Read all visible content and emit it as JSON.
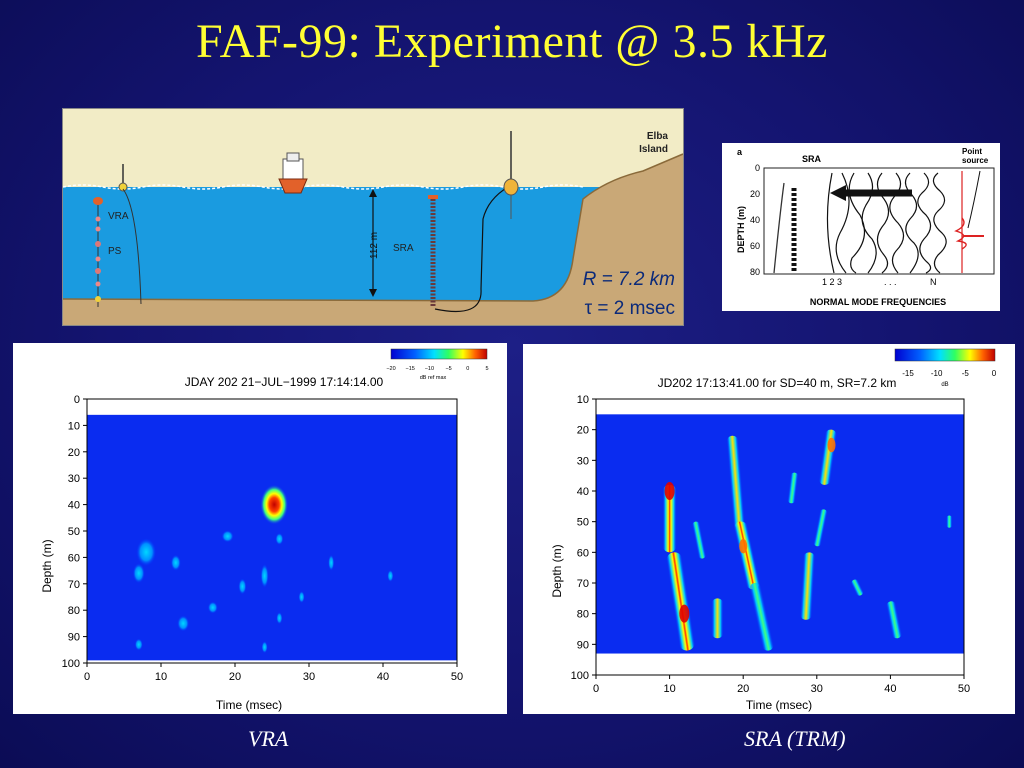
{
  "slide": {
    "title": "FAF-99: Experiment @ 3.5 kHz",
    "caption_left": "VRA",
    "caption_right": "SRA (TRM)"
  },
  "scene": {
    "island_label_1": "Elba",
    "island_label_2": "Island",
    "label_vra": "VRA",
    "label_ps": "PS",
    "label_sra": "SRA",
    "depth_label": "112 m",
    "range_label": "R = 7.2 km",
    "tau_label": "τ = 2 msec",
    "colors": {
      "sky": "#f2ecc6",
      "water": "#1a9be0",
      "seabed": "#c9a877"
    }
  },
  "modes_figure": {
    "panel_letter": "a",
    "label_sra": "SRA",
    "label_point": "Point",
    "label_source": "source",
    "ylabel": "DEPTH (m)",
    "yticks": [
      "0",
      "20",
      "40",
      "60",
      "80"
    ],
    "mode_labels": "1 2 3",
    "mode_dots": ". . .",
    "mode_n": "N",
    "xlabel": "NORMAL MODE FREQUENCIES"
  },
  "chart_data": [
    {
      "type": "heatmap",
      "title": "JDAY 202  21−JUL−1999 17:14:14.00",
      "xlabel": "Time (msec)",
      "ylabel": "Depth (m)",
      "xlim": [
        0,
        50
      ],
      "ylim": [
        0,
        100
      ],
      "xticks": [
        "0",
        "10",
        "20",
        "30",
        "40",
        "50"
      ],
      "yticks": [
        "0",
        "10",
        "20",
        "30",
        "40",
        "50",
        "60",
        "70",
        "80",
        "90",
        "100"
      ],
      "colorbar": {
        "ticks": [
          "−20",
          "−15",
          "−10",
          "−5",
          "0",
          "5"
        ],
        "label": "dB ref max"
      },
      "highlights": [
        {
          "time": 25.3,
          "depth": 40,
          "level": "max"
        }
      ]
    },
    {
      "type": "heatmap",
      "title": "JD202 17:13:41.00 for SD=40 m, SR=7.2 km",
      "xlabel": "Time (msec)",
      "ylabel": "Depth (m)",
      "xlim": [
        0,
        50
      ],
      "ylim": [
        10,
        100
      ],
      "xticks": [
        "0",
        "10",
        "20",
        "30",
        "40",
        "50"
      ],
      "yticks": [
        "10",
        "20",
        "30",
        "40",
        "50",
        "60",
        "70",
        "80",
        "90",
        "100"
      ],
      "colorbar": {
        "ticks": [
          "-15",
          "-10",
          "-5",
          "0"
        ],
        "label": "dB"
      },
      "highlights": [
        {
          "time": 10,
          "depth": 40,
          "level": "max"
        },
        {
          "time": 12,
          "depth": 80,
          "level": "max"
        },
        {
          "time": 20,
          "depth": 58,
          "level": "high"
        },
        {
          "time": 32,
          "depth": 25,
          "level": "high"
        }
      ]
    }
  ]
}
